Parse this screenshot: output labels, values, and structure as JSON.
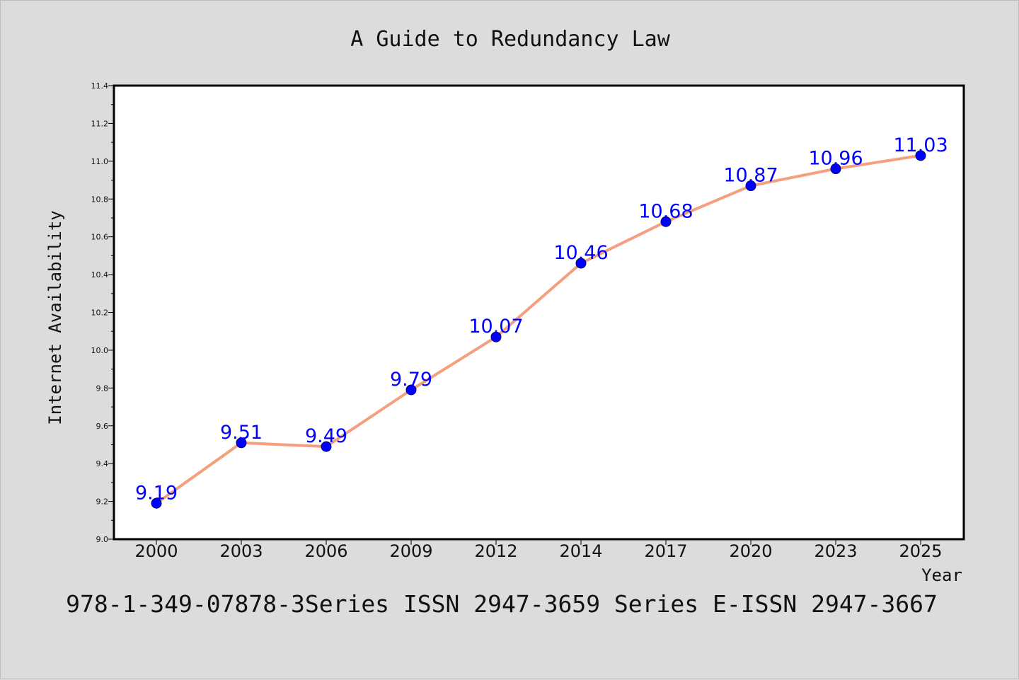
{
  "chart_data": {
    "type": "line",
    "title": "A Guide to Redundancy Law",
    "xlabel": "Year",
    "ylabel": "Internet Availability",
    "categories": [
      "2000",
      "2003",
      "2006",
      "2009",
      "2012",
      "2014",
      "2017",
      "2020",
      "2023",
      "2025"
    ],
    "series": [
      {
        "values": [
          9.19,
          9.51,
          9.49,
          9.79,
          10.07,
          10.46,
          10.68,
          10.87,
          10.96,
          11.03
        ]
      }
    ],
    "data_labels": [
      "9.19",
      "9.51",
      "9.49",
      "9.79",
      "10.07",
      "10.46",
      "10.68",
      "10.87",
      "10.96",
      "11.03"
    ],
    "ylim": [
      9.0,
      11.4
    ],
    "yticks": [
      "9.0",
      "9.2",
      "9.4",
      "9.6",
      "9.8",
      "10.0",
      "10.2",
      "10.4",
      "10.6",
      "10.8",
      "11.0",
      "11.2",
      "11.4"
    ],
    "grid": false,
    "legend": "none",
    "line_color": "#f4a07e",
    "marker_color": "#0000ff",
    "label_color": "#0000ff"
  },
  "footer": {
    "text": "978-1-349-07878-3Series ISSN 2947-3659 Series E-ISSN 2947-3667"
  }
}
